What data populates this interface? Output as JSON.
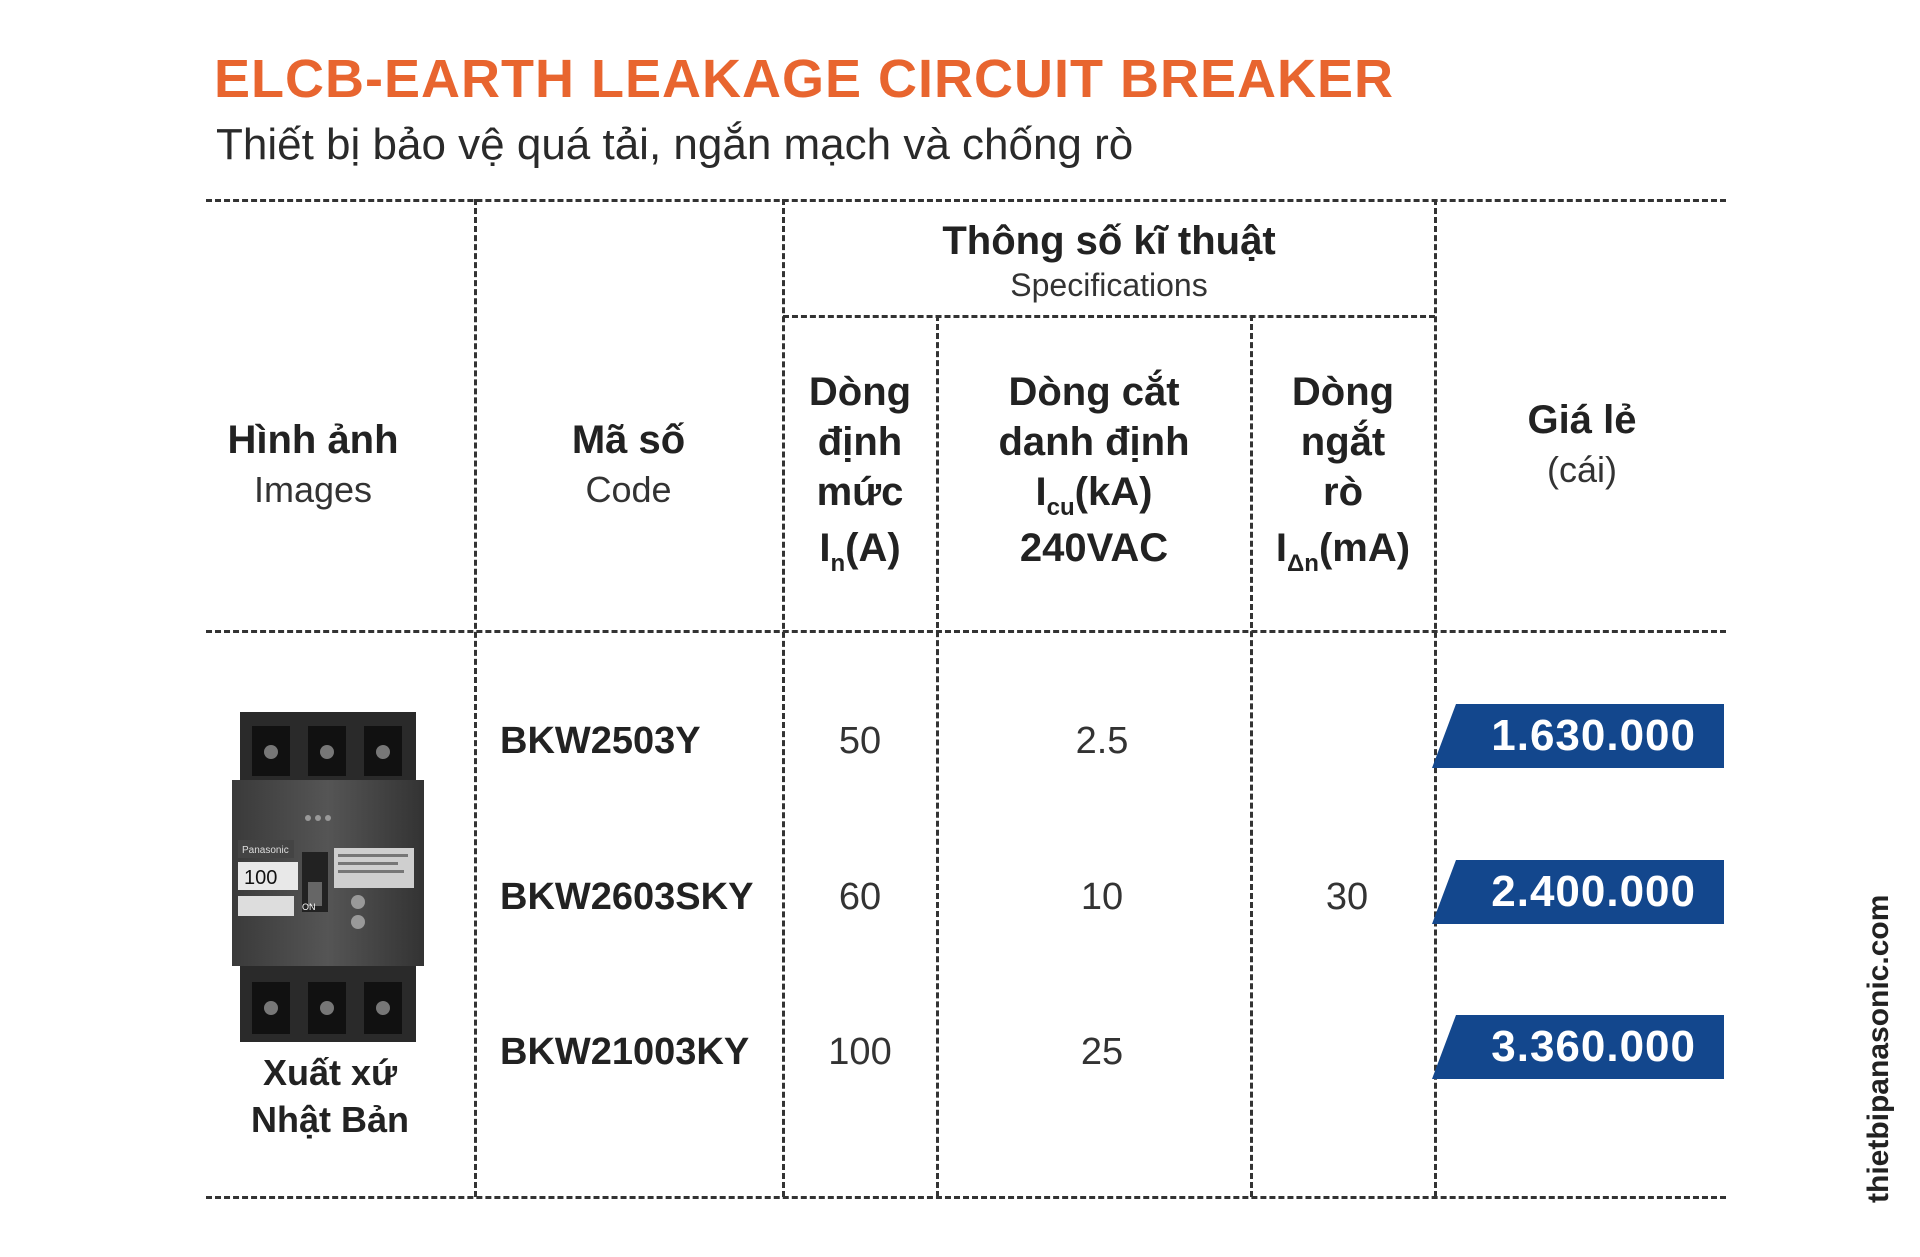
{
  "title": "ELCB-EARTH LEAKAGE CIRCUIT BREAKER",
  "subtitle": "Thiết bị bảo vệ quá tải, ngắn mạch và chống rò",
  "headers": {
    "image": {
      "main": "Hình ảnh",
      "sub": "Images"
    },
    "code": {
      "main": "Mã số",
      "sub": "Code"
    },
    "specs": {
      "main": "Thông số kĩ thuật",
      "sub": "Specifications"
    },
    "rated_current": {
      "line1": "Dòng",
      "line2": "định",
      "line3": "mức",
      "symbol": "I",
      "subscript": "n",
      "unit": "(A)"
    },
    "breaking_capacity": {
      "line1": "Dòng cắt",
      "line2": "danh định",
      "symbol": "I",
      "subscript": "cu",
      "unit": "(kA)",
      "line4": "240VAC"
    },
    "leakage": {
      "line1": "Dòng",
      "line2": "ngắt",
      "line3": "rò",
      "symbol": "I",
      "subscript": "Δn",
      "unit": "(mA)"
    },
    "price": {
      "main": "Giá lẻ",
      "sub": "(cái)"
    }
  },
  "rows": [
    {
      "code": "BKW2503Y",
      "rated": "50",
      "breaking": "2.5",
      "price": "1.630.000"
    },
    {
      "code": "BKW2603SKY",
      "rated": "60",
      "breaking": "10",
      "price": "2.400.000"
    },
    {
      "code": "BKW21003KY",
      "rated": "100",
      "breaking": "25",
      "price": "3.360.000"
    }
  ],
  "leakage_value": "30",
  "product": {
    "brand": "Panasonic",
    "rating_label": "100",
    "on_label": "ON"
  },
  "origin": "Xuất xứ Nhật Bản",
  "watermark": "thietbipanasonic.com",
  "colors": {
    "title": "#e8652f",
    "price_bg": "#13478d",
    "price_text": "#ffffff"
  }
}
